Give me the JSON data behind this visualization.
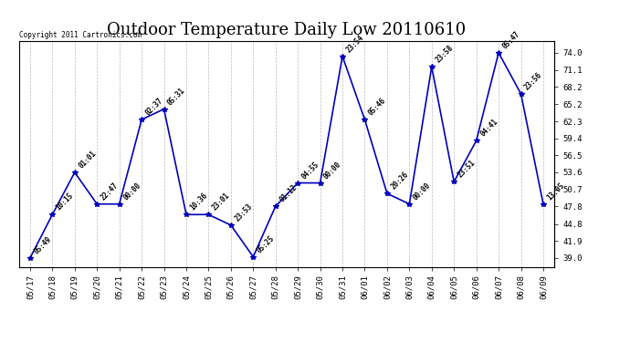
{
  "title": "Outdoor Temperature Daily Low 20110610",
  "copyright": "Copyright 2011 Cartronics.com",
  "x_labels": [
    "05/17",
    "05/18",
    "05/19",
    "05/20",
    "05/21",
    "05/22",
    "05/23",
    "05/24",
    "05/25",
    "05/26",
    "05/27",
    "05/28",
    "05/29",
    "05/30",
    "05/31",
    "06/01",
    "06/02",
    "06/03",
    "06/04",
    "06/05",
    "06/06",
    "06/07",
    "06/08",
    "06/09"
  ],
  "y_values": [
    39.0,
    46.4,
    53.6,
    48.2,
    48.2,
    62.6,
    64.4,
    46.4,
    46.4,
    44.6,
    39.2,
    47.8,
    51.8,
    51.8,
    73.4,
    62.6,
    50.0,
    48.2,
    71.6,
    52.0,
    59.0,
    74.0,
    67.0,
    48.2
  ],
  "time_labels": [
    "05:49",
    "10:15",
    "01:01",
    "22:47",
    "00:00",
    "02:37",
    "05:31",
    "10:36",
    "23:01",
    "23:53",
    "05:25",
    "01:12",
    "04:55",
    "00:00",
    "23:54",
    "05:46",
    "20:26",
    "00:00",
    "23:58",
    "23:51",
    "04:41",
    "05:47",
    "23:56",
    "13:05"
  ],
  "line_color": "#0000BB",
  "marker_color": "#0000BB",
  "background_color": "#FFFFFF",
  "grid_color": "#BBBBBB",
  "title_fontsize": 13,
  "ylim": [
    37.5,
    76.0
  ],
  "yticks": [
    39.0,
    41.9,
    44.8,
    47.8,
    50.7,
    53.6,
    56.5,
    59.4,
    62.3,
    65.2,
    68.2,
    71.1,
    74.0
  ]
}
